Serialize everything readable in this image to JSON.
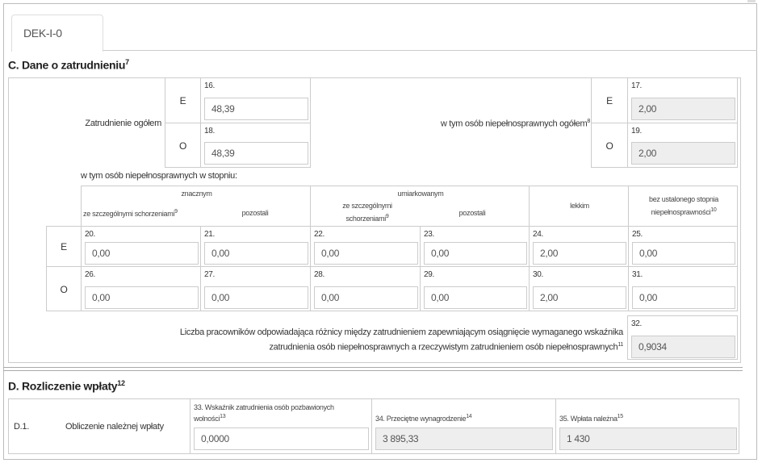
{
  "tab": {
    "label": "DEK-I-0"
  },
  "sectionC": {
    "title": "C. Dane o zatrudnieniu",
    "title_sup": "7",
    "total_label": "Zatrudnienie ogółem",
    "disabled_total_label": "w tym osób niepełnosprawnych ogółem",
    "disabled_total_sup": "8",
    "E": "E",
    "O": "O",
    "f16": {
      "num": "16.",
      "value": "48,39"
    },
    "f18": {
      "num": "18.",
      "value": "48,39"
    },
    "f17": {
      "num": "17.",
      "value": "2,00"
    },
    "f19": {
      "num": "19.",
      "value": "2,00"
    },
    "degree_label": "w tym osób niepełnosprawnych w stopniu:",
    "headers": {
      "znacznym": "znacznym",
      "umiarkowanym": "umiarkowanym",
      "special": "ze szczególnymi schorzeniami",
      "special_sup": "9",
      "special2a": "ze szczególnymi",
      "special2b": "schorzeniami",
      "others": "pozostali",
      "lekkim": "lekkim",
      "none_a": "bez ustalonego stopnia",
      "none_b": "niepełnosprawności",
      "none_sup": "10"
    },
    "rowE": [
      {
        "num": "20.",
        "value": "0,00"
      },
      {
        "num": "21.",
        "value": "0,00"
      },
      {
        "num": "22.",
        "value": "0,00"
      },
      {
        "num": "23.",
        "value": "0,00"
      },
      {
        "num": "24.",
        "value": "2,00"
      },
      {
        "num": "25.",
        "value": "0,00"
      }
    ],
    "rowO": [
      {
        "num": "26.",
        "value": "0,00"
      },
      {
        "num": "27.",
        "value": "0,00"
      },
      {
        "num": "28.",
        "value": "0,00"
      },
      {
        "num": "29.",
        "value": "0,00"
      },
      {
        "num": "30.",
        "value": "2,00"
      },
      {
        "num": "31.",
        "value": "0,00"
      }
    ],
    "f32": {
      "line1": "Liczba pracowników odpowiadająca różnicy między zatrudnieniem zapewniającym osiągnięcie wymaganego wskaźnika",
      "line2": "zatrudnienia osób niepełnosprawnych a rzeczywistym zatrudnieniem osób niepełnosprawnych",
      "sup": "11",
      "num": "32.",
      "value": "0,9034"
    }
  },
  "sectionD": {
    "title": "D. Rozliczenie wpłaty",
    "title_sup": "12",
    "row_code": "D.1.",
    "row_label": "Obliczenie należnej wpłaty",
    "f33": {
      "label": "33. Wskaźnik zatrudnienia osób pozbawionych wolności",
      "sup": "13",
      "value": "0,0000"
    },
    "f34": {
      "label": "34. Przeciętne wynagrodzenie",
      "sup": "14",
      "value": "3 895,33"
    },
    "f35": {
      "label": "35. Wpłata należna",
      "sup": "15",
      "value": "1 430"
    }
  }
}
